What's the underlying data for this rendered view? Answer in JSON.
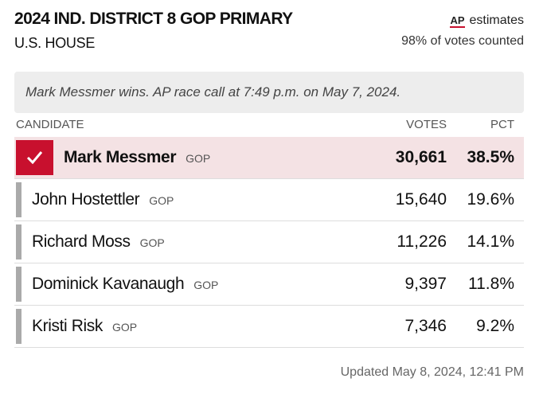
{
  "header": {
    "title": "2024 IND. DISTRICT 8 GOP PRIMARY",
    "subtitle": "U.S. HOUSE",
    "source_logo": "AP",
    "source_text": "estimates",
    "counted": "98% of votes counted"
  },
  "note": "Mark Messmer wins. AP race call at 7:49 p.m. on May 7, 2024.",
  "table": {
    "columns": [
      "CANDIDATE",
      "VOTES",
      "PCT"
    ],
    "rows": [
      {
        "name": "Mark Messmer",
        "party": "GOP",
        "votes": "30,661",
        "pct": "38.5%",
        "winner": true
      },
      {
        "name": "John Hostettler",
        "party": "GOP",
        "votes": "15,640",
        "pct": "19.6%",
        "winner": false
      },
      {
        "name": "Richard Moss",
        "party": "GOP",
        "votes": "11,226",
        "pct": "14.1%",
        "winner": false
      },
      {
        "name": "Dominick Kavanaugh",
        "party": "GOP",
        "votes": "9,397",
        "pct": "11.8%",
        "winner": false
      },
      {
        "name": "Kristi Risk",
        "party": "GOP",
        "votes": "7,346",
        "pct": "9.2%",
        "winner": false
      }
    ]
  },
  "footer": "Updated May 8, 2024, 12:41 PM"
}
